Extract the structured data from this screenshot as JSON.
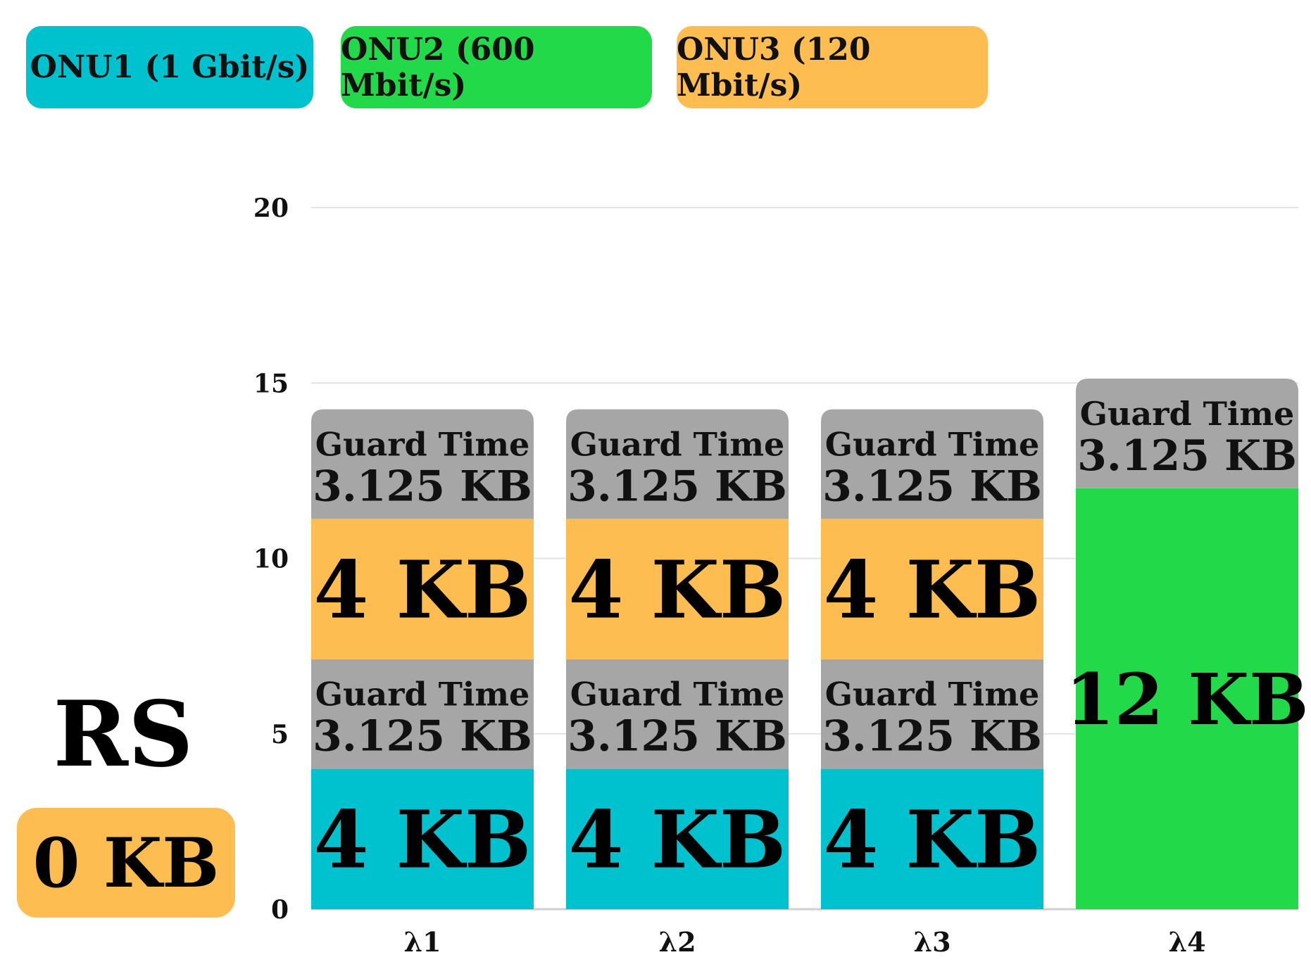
{
  "legend": [
    {
      "label": "ONU1 (1 Gbit/s)",
      "color": "#00C2CF"
    },
    {
      "label": "ONU2 (600 Mbit/s)",
      "color": "#22D94A"
    },
    {
      "label": "ONU3 (120 Mbit/s)",
      "color": "#FDBD51"
    }
  ],
  "rs": {
    "title": "RS",
    "value_label": "0 KB",
    "color": "#FDBD51"
  },
  "colors": {
    "guard": "#A6A6A6",
    "grid": "#E3E3E3"
  },
  "chart_data": {
    "type": "bar",
    "stacked": true,
    "categories": [
      "λ1",
      "λ2",
      "λ3",
      "λ4"
    ],
    "yticks": [
      "0",
      "5",
      "10",
      "15",
      "20"
    ],
    "ylim": [
      0,
      20
    ],
    "series": [
      {
        "name": "ONU1 (1 Gbit/s)",
        "color": "#00C2CF",
        "values": [
          4,
          4,
          4,
          0
        ]
      },
      {
        "name": "ONU2 (600 Mbit/s)",
        "color": "#22D94A",
        "values": [
          0,
          0,
          0,
          12
        ]
      },
      {
        "name": "ONU3 (120 Mbit/s)",
        "color": "#FDBD51",
        "values": [
          4,
          4,
          4,
          0
        ]
      }
    ],
    "stacks": [
      [
        {
          "kind": "onu1",
          "value": 4,
          "label": "4 KB"
        },
        {
          "kind": "guard",
          "value": 3.125,
          "line1": "Guard Time",
          "line2": "3.125 KB"
        },
        {
          "kind": "onu3",
          "value": 4,
          "label": "4 KB"
        },
        {
          "kind": "guard",
          "value": 3.125,
          "line1": "Guard Time",
          "line2": "3.125 KB"
        }
      ],
      [
        {
          "kind": "onu1",
          "value": 4,
          "label": "4 KB"
        },
        {
          "kind": "guard",
          "value": 3.125,
          "line1": "Guard Time",
          "line2": "3.125 KB"
        },
        {
          "kind": "onu3",
          "value": 4,
          "label": "4 KB"
        },
        {
          "kind": "guard",
          "value": 3.125,
          "line1": "Guard Time",
          "line2": "3.125 KB"
        }
      ],
      [
        {
          "kind": "onu1",
          "value": 4,
          "label": "4 KB"
        },
        {
          "kind": "guard",
          "value": 3.125,
          "line1": "Guard Time",
          "line2": "3.125 KB"
        },
        {
          "kind": "onu3",
          "value": 4,
          "label": "4 KB"
        },
        {
          "kind": "guard",
          "value": 3.125,
          "line1": "Guard Time",
          "line2": "3.125 KB"
        }
      ],
      [
        {
          "kind": "onu2",
          "value": 12,
          "label": "12 KB"
        },
        {
          "kind": "guard",
          "value": 3.125,
          "line1": "Guard Time",
          "line2": "3.125 KB"
        }
      ]
    ]
  }
}
